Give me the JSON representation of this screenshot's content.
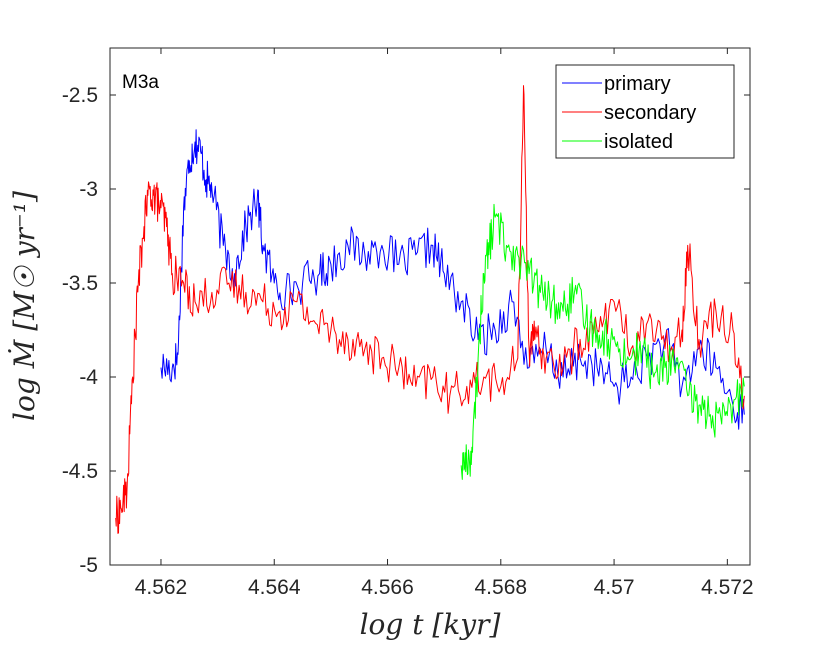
{
  "chart_data": {
    "type": "line",
    "panel_label": "M3a",
    "xlabel": "log t [kyr]",
    "ylabel": "log Ṁ [M☉ yr⁻¹]",
    "xlim": [
      4.5611,
      4.5724
    ],
    "ylim": [
      -5,
      -2.25
    ],
    "x_ticks": [
      4.562,
      4.564,
      4.566,
      4.568,
      4.57,
      4.572
    ],
    "x_tick_labels": [
      "4.562",
      "4.564",
      "4.566",
      "4.568",
      "4.57",
      "4.572"
    ],
    "y_ticks": [
      -5,
      -4.5,
      -4,
      -3.5,
      -3,
      -2.5
    ],
    "y_tick_labels": [
      "-5",
      "-4.5",
      "-4",
      "-3.5",
      "-3",
      "-2.5"
    ],
    "legend": {
      "position": "top-right",
      "entries": [
        "primary",
        "secondary",
        "isolated"
      ]
    },
    "series": [
      {
        "name": "primary",
        "color": "#0000ff",
        "x": [
          4.562,
          4.5622,
          4.5623,
          4.5624,
          4.5625,
          4.5626,
          4.5627,
          4.5628,
          4.5629,
          4.5631,
          4.5633,
          4.5635,
          4.5637,
          4.5638,
          4.564,
          4.5642,
          4.5645,
          4.5648,
          4.565,
          4.5653,
          4.5656,
          4.5659,
          4.5662,
          4.5665,
          4.5668,
          4.567,
          4.5673,
          4.5676,
          4.5679,
          4.5682,
          4.5685,
          4.5688,
          4.5691,
          4.5694,
          4.5697,
          4.57,
          4.5703,
          4.5706,
          4.5709,
          4.5712,
          4.5715,
          4.5718,
          4.5721,
          4.5723
        ],
        "y": [
          -3.95,
          -3.95,
          -3.88,
          -3.1,
          -2.85,
          -2.75,
          -2.8,
          -2.95,
          -3.0,
          -3.3,
          -3.45,
          -3.2,
          -3.05,
          -3.3,
          -3.5,
          -3.55,
          -3.5,
          -3.45,
          -3.4,
          -3.3,
          -3.35,
          -3.3,
          -3.4,
          -3.35,
          -3.3,
          -3.45,
          -3.6,
          -3.8,
          -3.75,
          -3.6,
          -3.95,
          -3.85,
          -4.0,
          -3.9,
          -3.95,
          -4.05,
          -4.0,
          -3.9,
          -3.8,
          -4.05,
          -3.85,
          -3.95,
          -4.15,
          -4.2
        ]
      },
      {
        "name": "secondary",
        "color": "#ff0000",
        "x": [
          4.5612,
          4.5613,
          4.5614,
          4.5615,
          4.5616,
          4.5617,
          4.5618,
          4.5619,
          4.562,
          4.5621,
          4.5622,
          4.5624,
          4.5626,
          4.5629,
          4.5632,
          4.5635,
          4.5638,
          4.5641,
          4.5644,
          4.5647,
          4.565,
          4.5653,
          4.5656,
          4.5659,
          4.5662,
          4.5665,
          4.5668,
          4.5671,
          4.5674,
          4.5677,
          4.568,
          4.5683,
          4.5684,
          4.5685,
          4.5686,
          4.5688,
          4.5691,
          4.5694,
          4.5697,
          4.57,
          4.5703,
          4.5706,
          4.5709,
          4.5712,
          4.5713,
          4.5715,
          4.5718,
          4.5721,
          4.5723
        ],
        "y": [
          -4.75,
          -4.7,
          -4.6,
          -4.0,
          -3.5,
          -3.2,
          -3.0,
          -3.05,
          -3.1,
          -3.2,
          -3.45,
          -3.5,
          -3.6,
          -3.55,
          -3.5,
          -3.55,
          -3.6,
          -3.65,
          -3.6,
          -3.7,
          -3.75,
          -3.8,
          -3.85,
          -3.9,
          -3.95,
          -4.05,
          -4.0,
          -4.1,
          -4.05,
          -4.0,
          -4.05,
          -3.9,
          -2.45,
          -3.85,
          -3.8,
          -3.9,
          -3.95,
          -3.8,
          -3.75,
          -3.6,
          -3.85,
          -3.7,
          -3.85,
          -3.75,
          -3.3,
          -3.8,
          -3.65,
          -3.75,
          -4.1
        ]
      },
      {
        "name": "isolated",
        "color": "#00ff00",
        "x": [
          4.5673,
          4.5674,
          4.5675,
          4.5676,
          4.5677,
          4.5678,
          4.5679,
          4.5681,
          4.5683,
          4.5685,
          4.5687,
          4.5689,
          4.5691,
          4.5693,
          4.5695,
          4.5697,
          4.5699,
          4.5701,
          4.5703,
          4.5705,
          4.5707,
          4.5709,
          4.5711,
          4.5713,
          4.5715,
          4.5717,
          4.5719,
          4.5721,
          4.5723
        ],
        "y": [
          -4.47,
          -4.45,
          -4.4,
          -3.9,
          -3.45,
          -3.3,
          -3.15,
          -3.3,
          -3.35,
          -3.45,
          -3.55,
          -3.6,
          -3.65,
          -3.55,
          -3.7,
          -3.75,
          -3.8,
          -3.85,
          -3.9,
          -3.85,
          -4.0,
          -3.95,
          -3.9,
          -4.1,
          -4.15,
          -4.2,
          -4.25,
          -4.15,
          -4.05
        ]
      }
    ]
  }
}
